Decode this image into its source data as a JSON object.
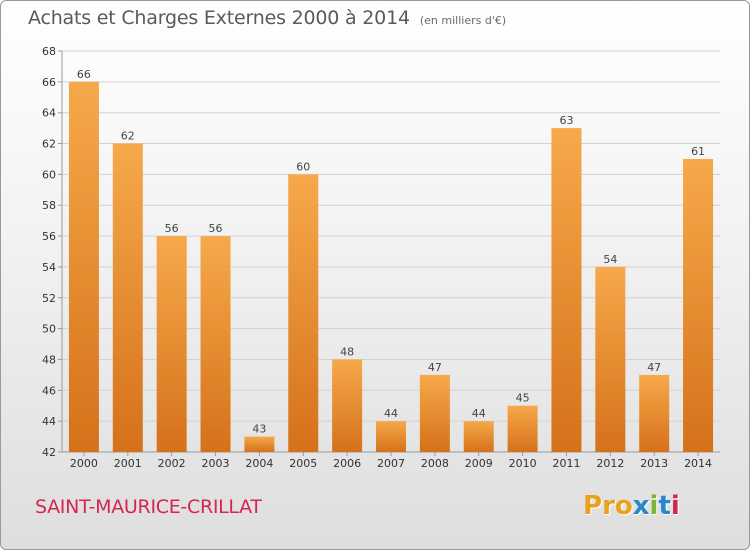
{
  "header": {
    "title": "Achats et Charges Externes 2000 à 2014",
    "subtitle": "(en milliers d'€)"
  },
  "footer": {
    "commune": "SAINT-MAURICE-CRILLAT",
    "brand": "Proxiti",
    "brand_letter_colors": [
      "#e8a21e",
      "#e8a21e",
      "#e8a21e",
      "#2a86c8",
      "#7cb531",
      "#2a86c8",
      "#d5264f"
    ]
  },
  "colors": {
    "bar_light": "#f6a94a",
    "bar_dark": "#d5711a",
    "grid": "#d2d2d2",
    "axis": "#9a9a9a"
  },
  "chart_data": {
    "type": "bar",
    "categories": [
      "2000",
      "2001",
      "2002",
      "2003",
      "2004",
      "2005",
      "2006",
      "2007",
      "2008",
      "2009",
      "2010",
      "2011",
      "2012",
      "2013",
      "2014"
    ],
    "values": [
      66,
      62,
      56,
      56,
      43,
      60,
      48,
      44,
      47,
      44,
      45,
      63,
      54,
      47,
      61
    ],
    "ylim": [
      42,
      68
    ],
    "yticks": [
      42,
      44,
      46,
      48,
      50,
      52,
      54,
      56,
      58,
      60,
      62,
      64,
      66,
      68
    ],
    "grid": true,
    "legend": "none"
  }
}
